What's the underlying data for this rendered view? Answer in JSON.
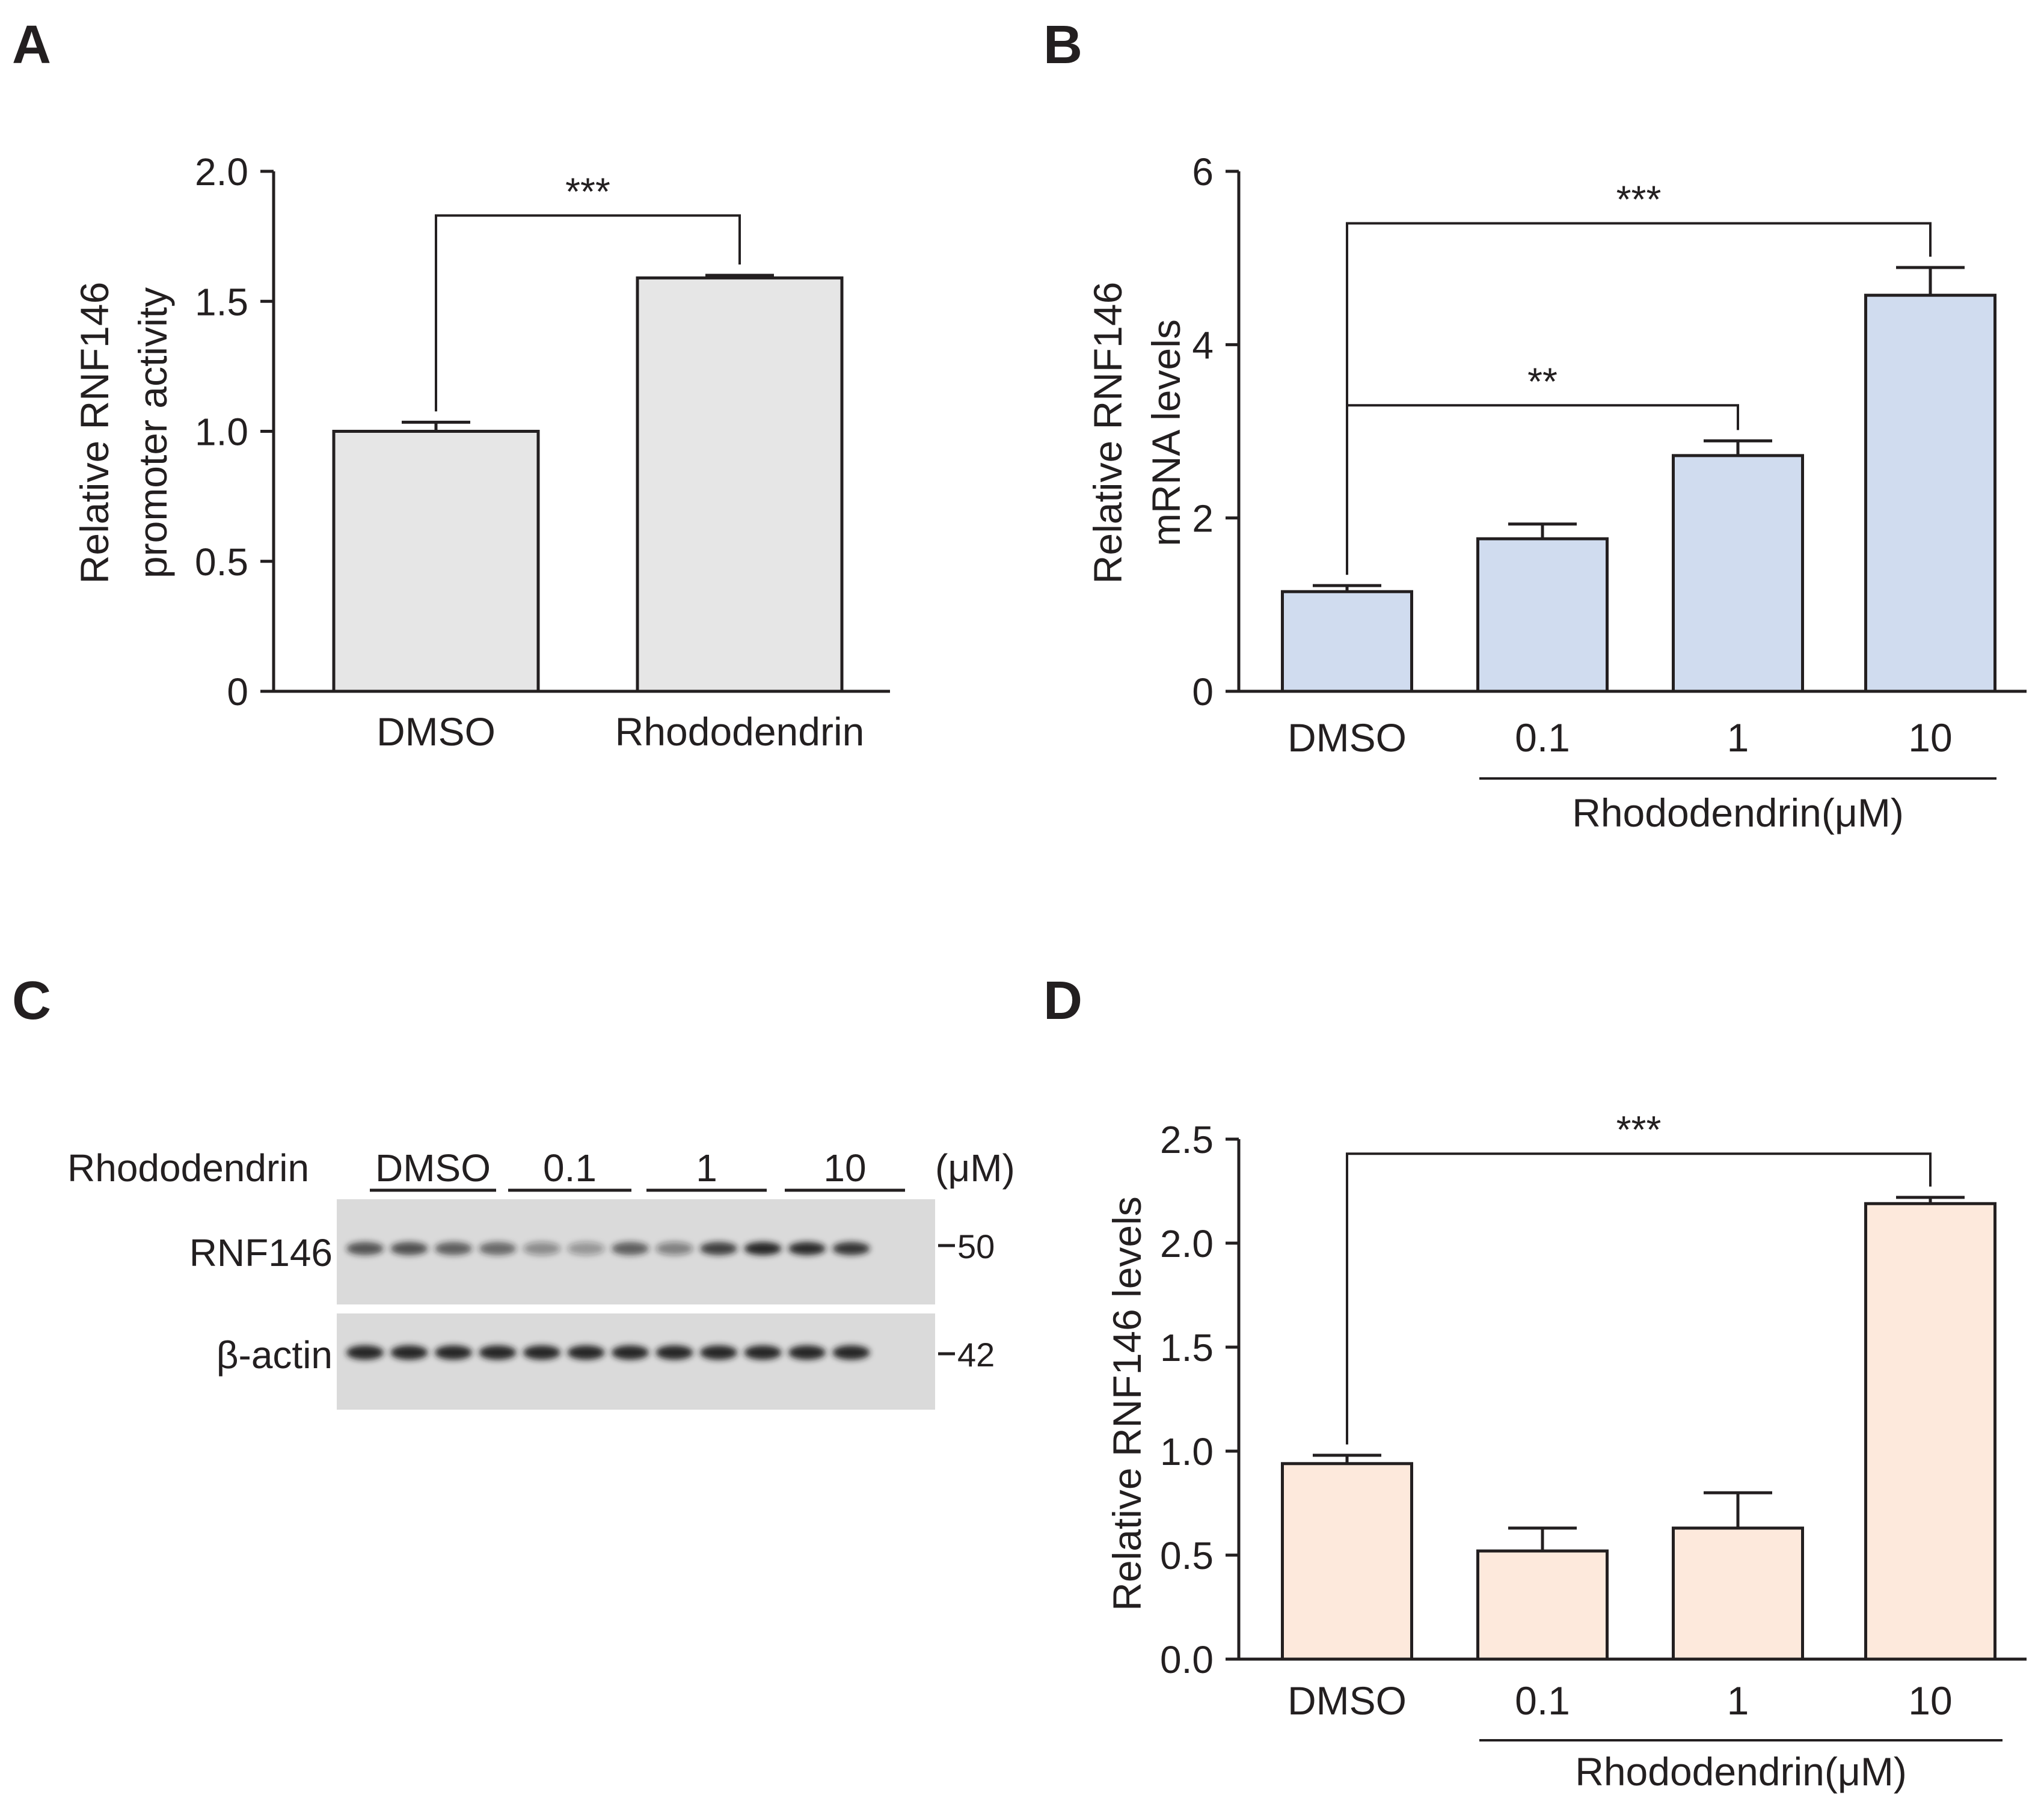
{
  "panel_labels": [
    "A",
    "B",
    "C",
    "D"
  ],
  "chart_data": [
    {
      "id": "A",
      "type": "bar",
      "categories": [
        "DMSO",
        "Rhododendrin"
      ],
      "values": [
        1.0,
        1.59
      ],
      "errors": [
        0.035,
        0.01
      ],
      "ylabel": [
        "Relative RNF146",
        "promoter activity"
      ],
      "ylim": [
        0,
        2.0
      ],
      "yticks": [
        "0",
        "0.5",
        "1.0",
        "1.5",
        "2.0"
      ],
      "ytick_values": [
        0,
        0.5,
        1.0,
        1.5,
        2.0
      ],
      "bar_fill": "#e6e6e6",
      "significance": [
        {
          "from": 0,
          "to": 1,
          "label": "***",
          "y": 1.83
        }
      ]
    },
    {
      "id": "B",
      "type": "bar",
      "categories": [
        "DMSO",
        "0.1",
        "1",
        "10"
      ],
      "values": [
        1.15,
        1.76,
        2.72,
        4.57
      ],
      "errors": [
        0.07,
        0.17,
        0.17,
        0.32
      ],
      "ylabel": [
        "Relative RNF146",
        "mRNA levels"
      ],
      "ylim": [
        0,
        6
      ],
      "yticks": [
        "0",
        "2",
        "4",
        "6"
      ],
      "ytick_values": [
        0,
        2,
        4,
        6
      ],
      "group_label": "Rhododendrin(μM)",
      "bar_fill": "#d0dcef",
      "significance": [
        {
          "from": 0,
          "to": 3,
          "label": "***",
          "y": 5.4
        },
        {
          "from": 0,
          "to": 2,
          "label": "**",
          "y": 3.3
        }
      ]
    },
    {
      "id": "D",
      "type": "bar",
      "categories": [
        "DMSO",
        "0.1",
        "1",
        "10"
      ],
      "values": [
        0.94,
        0.52,
        0.63,
        2.19
      ],
      "errors": [
        0.04,
        0.11,
        0.17,
        0.03
      ],
      "ylabel": [
        "Relative RNF146 levels"
      ],
      "ylim": [
        0,
        2.5
      ],
      "yticks": [
        "0.0",
        "0.5",
        "1.0",
        "1.5",
        "2.0",
        "2.5"
      ],
      "ytick_values": [
        0,
        0.5,
        1.0,
        1.5,
        2.0,
        2.5
      ],
      "group_label": "Rhododendrin(μM)",
      "bar_fill": "#fde9dc",
      "significance": [
        {
          "from": 0,
          "to": 3,
          "label": "***",
          "y": 2.43
        }
      ]
    }
  ],
  "western_blot": {
    "treatment_label": "Rhododendrin",
    "unit_label": "(μM)",
    "groups": [
      "DMSO",
      "0.1",
      "1",
      "10"
    ],
    "rows": [
      {
        "label": "RNF146",
        "marker": "50",
        "intensities": [
          0.7,
          0.72,
          0.65,
          0.6,
          0.4,
          0.35,
          0.65,
          0.45,
          0.8,
          0.95,
          0.9,
          0.85
        ]
      },
      {
        "label": "β-actin",
        "marker": "42",
        "intensities": [
          0.95,
          0.95,
          0.95,
          0.95,
          0.95,
          0.95,
          0.95,
          0.95,
          0.95,
          0.95,
          0.95,
          0.95
        ]
      }
    ]
  },
  "colors": {
    "ink": "#231f20",
    "blot_background": "#d9d9d9",
    "band": "#1a1a1a"
  }
}
